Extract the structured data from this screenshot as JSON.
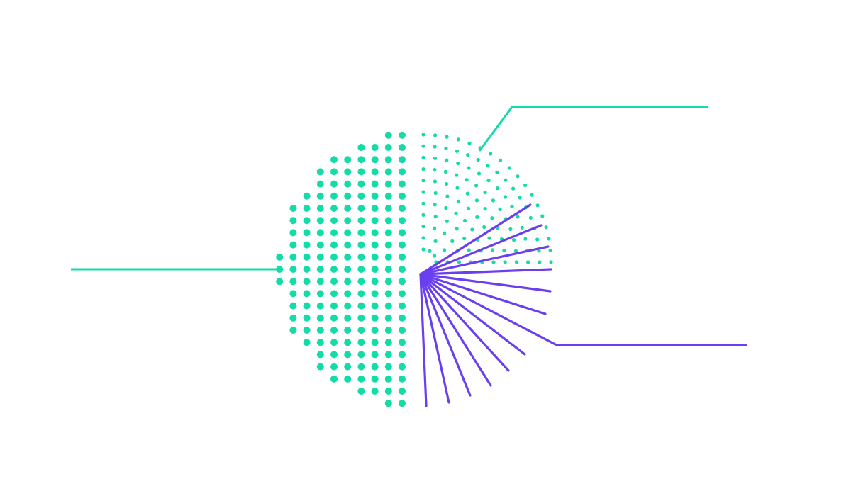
{
  "colors": {
    "background": "#ffffff",
    "teal": "#14dca8",
    "purple": "#6a3ff0"
  },
  "segments": [
    {
      "name": "dotted-grid-half",
      "color": "teal"
    },
    {
      "name": "dotted-arc-quarter",
      "color": "teal"
    },
    {
      "name": "ray-fan",
      "color": "purple"
    }
  ],
  "callouts": [
    {
      "name": "left-leader-line",
      "color": "teal",
      "label": ""
    },
    {
      "name": "top-right-leader-line",
      "color": "teal",
      "label": ""
    },
    {
      "name": "bottom-right-leader-line",
      "color": "purple",
      "label": ""
    }
  ]
}
